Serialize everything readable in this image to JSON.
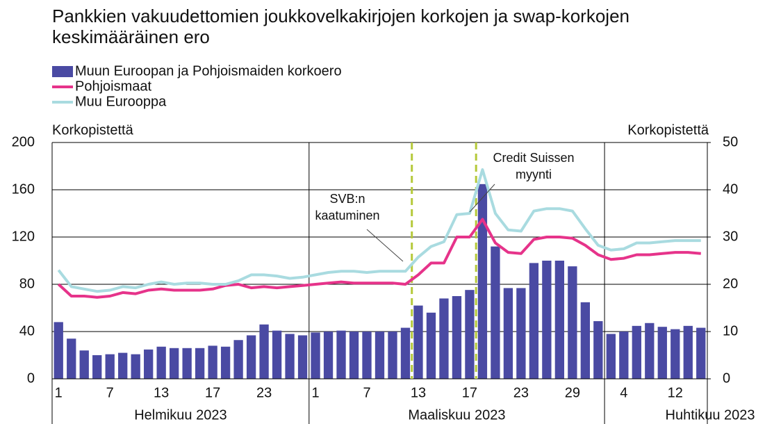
{
  "chart_data": {
    "type": "bar-line",
    "title": "Pankkien vakuudettomien joukkovelkakirjojen korkojen ja swap-korkojen keskimääräinen ero",
    "ylabel": "Korkopistettä",
    "y2label": "Korkopistettä",
    "categories": [
      "1",
      null,
      null,
      null,
      "7",
      null,
      null,
      null,
      "13",
      null,
      null,
      null,
      "17",
      null,
      null,
      null,
      "23",
      null,
      null,
      null,
      "1",
      null,
      null,
      null,
      "7",
      null,
      null,
      null,
      "13",
      null,
      null,
      null,
      "17",
      null,
      null,
      null,
      "23",
      null,
      null,
      null,
      "29",
      null,
      null,
      null,
      "4",
      null,
      null,
      null,
      "12",
      null,
      null
    ],
    "months": [
      "Helmikuu 2023",
      "Maaliskuu 2023",
      "Huhtikuu 2023"
    ],
    "series": [
      {
        "name": "Muun Euroopan ja Pohjoismaiden korkoero",
        "kind": "bar",
        "axis": "y2",
        "color": "#4a4aa3",
        "values": [
          12,
          8.5,
          6,
          5,
          5.2,
          5.5,
          5.2,
          6.2,
          6.8,
          6.5,
          6.5,
          6.5,
          7,
          6.8,
          8.2,
          9.2,
          11.5,
          10.2,
          9.5,
          9.2,
          9.8,
          10,
          10.2,
          10,
          10,
          10,
          10,
          10.8,
          15.5,
          14,
          17,
          17.5,
          18.8,
          41.2,
          28,
          19.2,
          19.2,
          24.5,
          25,
          25,
          23.8,
          16.2,
          12.2,
          9.5,
          10,
          11.2,
          11.8,
          11,
          10.5,
          11.2,
          10.8
        ]
      },
      {
        "name": "Pohjoismaat",
        "kind": "line",
        "color": "#e6338a",
        "values": [
          80,
          70,
          70,
          69,
          70,
          73,
          72,
          75,
          76,
          75,
          75,
          75,
          76,
          79,
          80,
          77,
          78,
          77,
          78,
          79,
          80,
          81,
          82,
          81,
          81,
          81,
          81,
          80,
          88,
          98,
          98,
          120,
          120,
          135,
          115,
          107,
          106,
          118,
          120,
          120,
          119,
          113,
          105,
          101,
          102,
          105,
          105,
          106,
          107,
          107,
          106
        ]
      },
      {
        "name": "Muu Eurooppa",
        "kind": "line",
        "color": "#a9dbe0",
        "values": [
          92,
          78,
          76,
          74,
          75,
          78,
          77,
          80,
          82,
          80,
          81,
          81,
          80,
          80,
          83,
          88,
          88,
          87,
          85,
          86,
          88,
          90,
          91,
          91,
          90,
          91,
          91,
          91,
          103,
          112,
          116,
          139,
          140,
          177,
          140,
          126,
          125,
          142,
          144,
          144,
          142,
          127,
          113,
          109,
          110,
          115,
          115,
          116,
          117,
          117,
          117
        ]
      }
    ],
    "ylim": [
      0,
      200
    ],
    "yticks": [
      0,
      40,
      80,
      120,
      160,
      200
    ],
    "y2lim": [
      0,
      50
    ],
    "y2ticks": [
      0,
      10,
      20,
      30,
      40,
      50
    ],
    "annotations": [
      {
        "lines": [
          "SVB:n",
          "kaatuminen"
        ]
      },
      {
        "lines": [
          "Credit Suissen",
          "myynti"
        ]
      }
    ],
    "event_color": "#b5c93a",
    "grid": true
  }
}
